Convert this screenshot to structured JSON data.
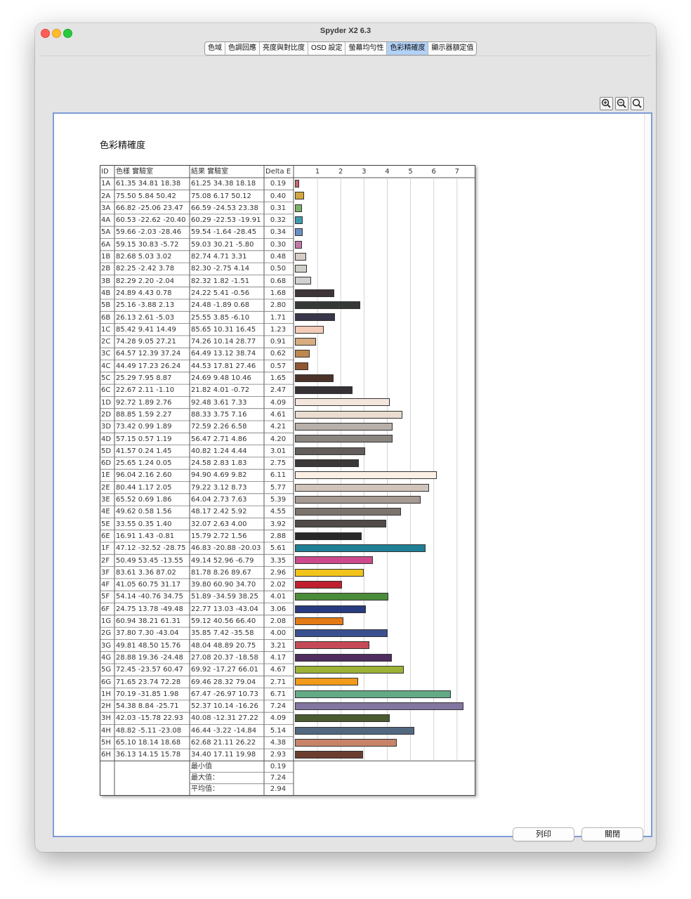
{
  "window": {
    "title": "Spyder X2 6.3"
  },
  "tabs": [
    {
      "label": "色域",
      "active": false
    },
    {
      "label": "色調回應",
      "active": false
    },
    {
      "label": "亮度與對比度",
      "active": false
    },
    {
      "label": "OSD 設定",
      "active": false
    },
    {
      "label": "螢幕均勻性",
      "active": false
    },
    {
      "label": "色彩精確度",
      "active": true
    },
    {
      "label": "顯示器額定值",
      "active": false
    }
  ],
  "zoom": {
    "icons": [
      "zoom-in-icon",
      "zoom-out-icon",
      "zoom-reset-icon"
    ]
  },
  "report": {
    "title": "色彩精確度",
    "headers": {
      "id": "ID",
      "ref": "色樣 實驗室",
      "meas": "結果 實驗室",
      "de": "Delta E"
    },
    "axis_ticks": [
      "1",
      "2",
      "3",
      "4",
      "5",
      "6",
      "7"
    ],
    "axis_max": 7.7,
    "rows": [
      {
        "id": "1A",
        "ref": "61.35 34.81 18.38",
        "meas": "61.25 34.38 18.18",
        "de": "0.19",
        "color": "#c8666a"
      },
      {
        "id": "2A",
        "ref": "75.50 5.84 50.42",
        "meas": "75.08 6.17 50.12",
        "de": "0.40",
        "color": "#d2a640"
      },
      {
        "id": "3A",
        "ref": "66.82 -25.06 23.47",
        "meas": "66.59 -24.53 23.38",
        "de": "0.31",
        "color": "#7fb06a"
      },
      {
        "id": "4A",
        "ref": "60.53 -22.62 -20.40",
        "meas": "60.29 -22.53 -19.91",
        "de": "0.32",
        "color": "#3e9ab0"
      },
      {
        "id": "5A",
        "ref": "59.66 -2.03 -28.46",
        "meas": "59.54 -1.64 -28.45",
        "de": "0.34",
        "color": "#6b8fc4"
      },
      {
        "id": "6A",
        "ref": "59.15 30.83 -5.72",
        "meas": "59.03 30.21 -5.80",
        "de": "0.30",
        "color": "#c27aa6"
      },
      {
        "id": "1B",
        "ref": "82.68 5.03 3.02",
        "meas": "82.74 4.71 3.31",
        "de": "0.48",
        "color": "#d8ccc8"
      },
      {
        "id": "2B",
        "ref": "82.25 -2.42 3.78",
        "meas": "82.30 -2.75 4.14",
        "de": "0.50",
        "color": "#cdd1c7"
      },
      {
        "id": "3B",
        "ref": "82.29 2.20 -2.04",
        "meas": "82.32 1.82 -1.51",
        "de": "0.68",
        "color": "#d3cfd3"
      },
      {
        "id": "4B",
        "ref": "24.89 4.43 0.78",
        "meas": "24.22 5.41 -0.56",
        "de": "1.68",
        "color": "#3e3538"
      },
      {
        "id": "5B",
        "ref": "25.16 -3.88 2.13",
        "meas": "24.48 -1.89 0.68",
        "de": "2.80",
        "color": "#363a37"
      },
      {
        "id": "6B",
        "ref": "26.13 2.61 -5.03",
        "meas": "25.55 3.85 -6.10",
        "de": "1.71",
        "color": "#38374a"
      },
      {
        "id": "1C",
        "ref": "85.42 9.41 14.49",
        "meas": "85.65 10.31 16.45",
        "de": "1.23",
        "color": "#f3cdb8"
      },
      {
        "id": "2C",
        "ref": "74.28 9.05 27.21",
        "meas": "74.26 10.14 28.77",
        "de": "0.91",
        "color": "#d7ac80"
      },
      {
        "id": "3C",
        "ref": "64.57 12.39 37.24",
        "meas": "64.49 13.12 38.74",
        "de": "0.62",
        "color": "#be8950"
      },
      {
        "id": "4C",
        "ref": "44.49 17.23 26.24",
        "meas": "44.53 17.81 27.46",
        "de": "0.57",
        "color": "#8f5632"
      },
      {
        "id": "5C",
        "ref": "25.29 7.95 8.87",
        "meas": "24.69 9.48 10.46",
        "de": "1.65",
        "color": "#4b3228"
      },
      {
        "id": "6C",
        "ref": "22.67 2.11 -1.10",
        "meas": "21.82 4.01 -0.72",
        "de": "2.47",
        "color": "#353134"
      },
      {
        "id": "1D",
        "ref": "92.72 1.89 2.76",
        "meas": "92.48 3.61 7.33",
        "de": "4.09",
        "color": "#f4e5dd"
      },
      {
        "id": "2D",
        "ref": "88.85 1.59 2.27",
        "meas": "88.33 3.75 7.16",
        "de": "4.61",
        "color": "#eadcd0"
      },
      {
        "id": "3D",
        "ref": "73.42 0.99 1.89",
        "meas": "72.59 2.26 6.58",
        "de": "4.21",
        "color": "#b8b0aa"
      },
      {
        "id": "4D",
        "ref": "57.15 0.57 1.19",
        "meas": "56.47 2.71 4.86",
        "de": "4.20",
        "color": "#8b8580"
      },
      {
        "id": "5D",
        "ref": "41.57 0.24 1.45",
        "meas": "40.82 1.24 4.44",
        "de": "3.01",
        "color": "#625d5a"
      },
      {
        "id": "6D",
        "ref": "25.65 1.24 0.05",
        "meas": "24.58 2.83 1.83",
        "de": "2.75",
        "color": "#3c3838"
      },
      {
        "id": "1E",
        "ref": "96.04 2.16 2.60",
        "meas": "94.90 4.69 9.82",
        "de": "6.11",
        "color": "#fcefe4"
      },
      {
        "id": "2E",
        "ref": "80.44 1.17 2.05",
        "meas": "79.22 3.12 8.73",
        "de": "5.77",
        "color": "#d1c4ba"
      },
      {
        "id": "3E",
        "ref": "65.52 0.69 1.86",
        "meas": "64.04 2.73 7.63",
        "de": "5.39",
        "color": "#a69b93"
      },
      {
        "id": "4E",
        "ref": "49.62 0.58 1.56",
        "meas": "48.17 2.42 5.92",
        "de": "4.55",
        "color": "#7b736e"
      },
      {
        "id": "5E",
        "ref": "33.55 0.35 1.40",
        "meas": "32.07 2.63 4.00",
        "de": "3.92",
        "color": "#504b49"
      },
      {
        "id": "6E",
        "ref": "16.91 1.43 -0.81",
        "meas": "15.79 2.72 1.56",
        "de": "2.88",
        "color": "#2a2728"
      },
      {
        "id": "1F",
        "ref": "47.12 -32.52 -28.75",
        "meas": "46.83 -20.88 -20.03",
        "de": "5.61",
        "color": "#1f7f95"
      },
      {
        "id": "2F",
        "ref": "50.49 53.45 -13.55",
        "meas": "49.14 52.96 -6.79",
        "de": "3.35",
        "color": "#cc4a8c"
      },
      {
        "id": "3F",
        "ref": "83.61 3.36 87.02",
        "meas": "81.78 8.26 89.67",
        "de": "2.96",
        "color": "#f2c41b"
      },
      {
        "id": "4F",
        "ref": "41.05 60.75 31.17",
        "meas": "39.80 60.90 34.70",
        "de": "2.02",
        "color": "#c0202e"
      },
      {
        "id": "5F",
        "ref": "54.14 -40.76 34.75",
        "meas": "51.89 -34.59 38.25",
        "de": "4.01",
        "color": "#4b8c3a"
      },
      {
        "id": "6F",
        "ref": "24.75 13.78 -49.48",
        "meas": "22.77 13.03 -43.04",
        "de": "3.06",
        "color": "#283a80"
      },
      {
        "id": "1G",
        "ref": "60.94 38.21 61.31",
        "meas": "59.12 40.56 66.40",
        "de": "2.08",
        "color": "#e37a16"
      },
      {
        "id": "2G",
        "ref": "37.80 7.30 -43.04",
        "meas": "35.85 7.42 -35.58",
        "de": "4.00",
        "color": "#3b508f"
      },
      {
        "id": "3G",
        "ref": "49.81 48.50 15.76",
        "meas": "48.04 48.89 20.75",
        "de": "3.21",
        "color": "#c44a57"
      },
      {
        "id": "4G",
        "ref": "28.88 19.36 -24.48",
        "meas": "27.08 20.37 -18.58",
        "de": "4.17",
        "color": "#4f2d5e"
      },
      {
        "id": "5G",
        "ref": "72.45 -23.57 60.47",
        "meas": "69.92 -17.27 66.01",
        "de": "4.67",
        "color": "#9bb236"
      },
      {
        "id": "6G",
        "ref": "71.65 23.74 72.28",
        "meas": "69.46 28.32 79.04",
        "de": "2.71",
        "color": "#f19a1b"
      },
      {
        "id": "1H",
        "ref": "70.19 -31.85 1.98",
        "meas": "67.47 -26.97 10.73",
        "de": "6.71",
        "color": "#63aa86"
      },
      {
        "id": "2H",
        "ref": "54.38 8.84 -25.71",
        "meas": "52.37 10.14 -16.26",
        "de": "7.24",
        "color": "#8276a0"
      },
      {
        "id": "3H",
        "ref": "42.03 -15.78 22.93",
        "meas": "40.08 -12.31 27.22",
        "de": "4.09",
        "color": "#4a5b30"
      },
      {
        "id": "4H",
        "ref": "48.82 -5.11 -23.08",
        "meas": "46.44 -3.22 -14.84",
        "de": "5.14",
        "color": "#51687f"
      },
      {
        "id": "5H",
        "ref": "65.10 18.14 18.68",
        "meas": "62.68 21.11 26.22",
        "de": "4.38",
        "color": "#c78468"
      },
      {
        "id": "6H",
        "ref": "36.13 14.15 15.78",
        "meas": "34.40 17.11 19.98",
        "de": "2.93",
        "color": "#6b3d2f"
      }
    ],
    "summary": [
      {
        "label": "最小值",
        "value": "0.19"
      },
      {
        "label": "最大值：",
        "value": "7.24"
      },
      {
        "label": "平均值：",
        "value": "2.94"
      }
    ]
  },
  "buttons": {
    "print": "列印",
    "close": "關閉"
  }
}
